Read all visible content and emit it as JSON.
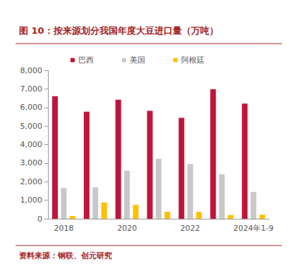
{
  "chart_data": {
    "type": "bar",
    "title": "图 10：按来源划分我国年度大豆进口量（万吨）",
    "source": "资料来源：钢联、创元研究",
    "categories": [
      "2018",
      null,
      "2020",
      null,
      "2022",
      null,
      "2024年1-9"
    ],
    "series": [
      {
        "name": "巴西",
        "color": "#c0143c",
        "values": [
          6610,
          5770,
          6420,
          5820,
          5440,
          6990,
          6210
        ]
      },
      {
        "name": "美国",
        "color": "#c8c8c8",
        "values": [
          1660,
          1700,
          2590,
          3230,
          2950,
          2400,
          1450
        ]
      },
      {
        "name": "阿根廷",
        "color": "#ffc000",
        "values": [
          150,
          880,
          750,
          380,
          370,
          200,
          220
        ]
      }
    ],
    "ylim": [
      0,
      8000
    ],
    "yticks": [
      0,
      1000,
      2000,
      3000,
      4000,
      5000,
      6000,
      7000,
      8000
    ],
    "grid": false,
    "legend": "top"
  }
}
